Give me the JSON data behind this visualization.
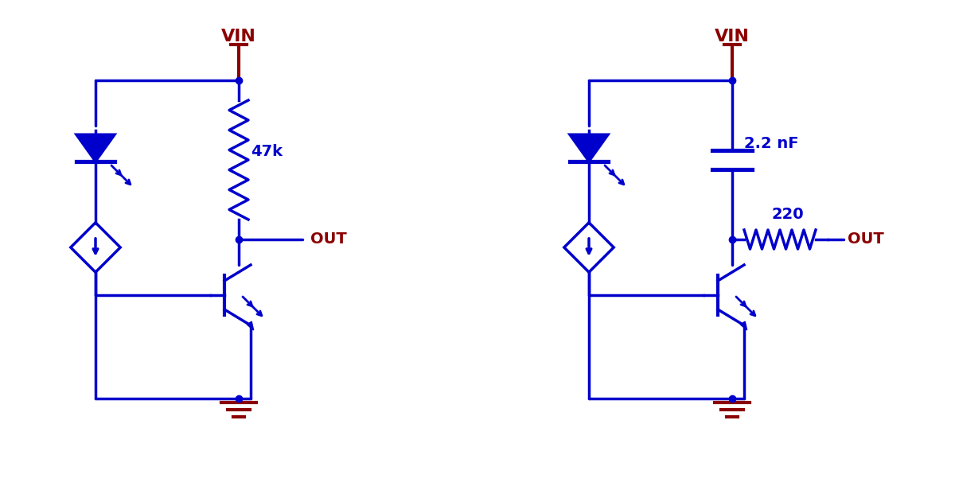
{
  "blue": "#0000CC",
  "dark_red": "#8B0000",
  "black": "#000000",
  "white": "#FFFFFF",
  "line_width": 2.5,
  "thick_line": 3.0,
  "fig_width": 12.0,
  "fig_height": 6.21,
  "circuit1": {
    "vin_label": "VIN",
    "res_label": "47k",
    "out_label": "OUT"
  },
  "circuit2": {
    "vin_label": "VIN",
    "cap_label": "2.2 nF",
    "res_label": "220",
    "out_label": "OUT"
  }
}
